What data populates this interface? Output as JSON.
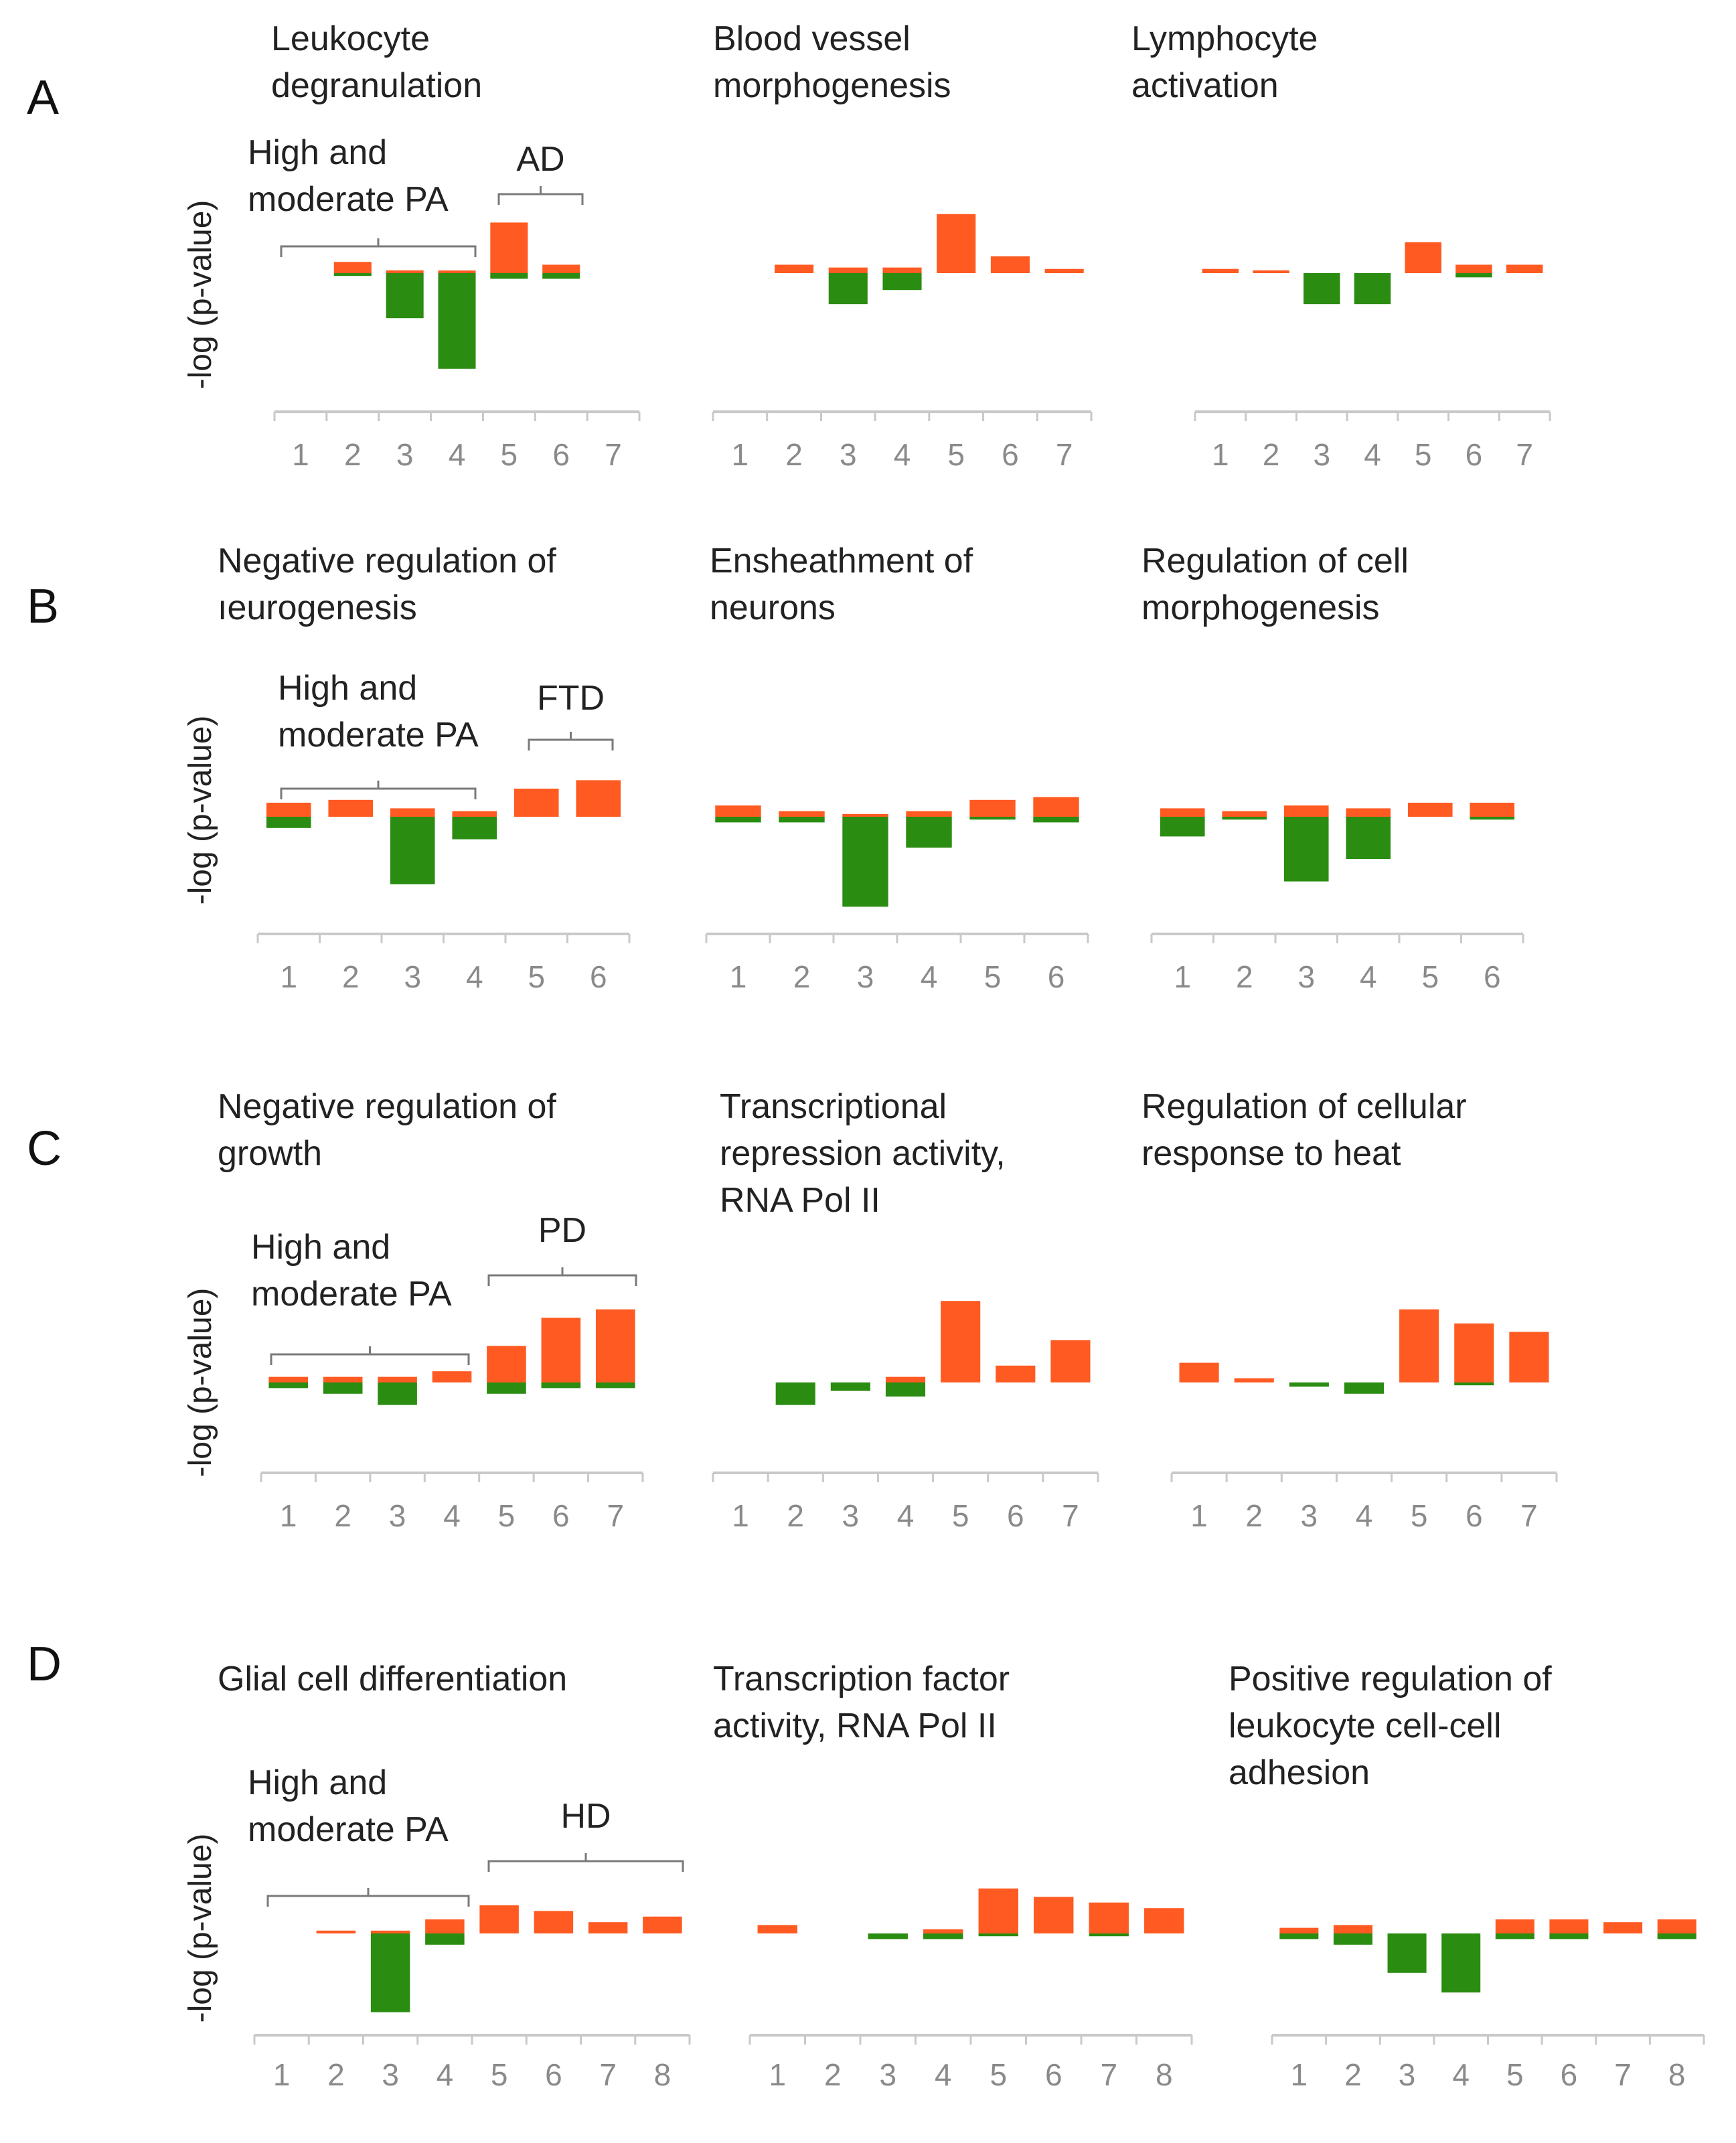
{
  "colors": {
    "up": "#ff5a22",
    "down": "#2a8c10",
    "axis": "#c9c9c9",
    "tick_text": "#8a8a8a"
  },
  "rows": [
    {
      "letter": "A",
      "ylabel": "-log (p-value)",
      "group1": "High and\nmoderate PA",
      "group2": "AD"
    },
    {
      "letter": "B",
      "ylabel": "-log (p-value)",
      "group1": "High and\nmoderate PA",
      "group2": "FTD"
    },
    {
      "letter": "C",
      "ylabel": "-log (p-value)",
      "group1": "High and\nmoderate PA",
      "group2": "PD"
    },
    {
      "letter": "D",
      "ylabel": "-log (p-value)",
      "group1": "High and\nmoderate PA",
      "group2": "HD"
    }
  ],
  "chart_data": [
    {
      "type": "bar",
      "title": "Leukocyte\ndegranulation",
      "ylabel": "-log (p-value)",
      "categories": [
        "1",
        "2",
        "3",
        "4",
        "5",
        "6",
        "7"
      ],
      "series": [
        {
          "color": "up",
          "values": [
            0,
            0.4,
            0.1,
            0.05,
            1.8,
            0.3,
            0
          ]
        },
        {
          "color": "down",
          "values": [
            0,
            -0.1,
            -1.6,
            -3.4,
            -0.2,
            -0.2,
            0
          ]
        }
      ]
    },
    {
      "type": "bar",
      "title": "Blood vessel\nmorphogenesis",
      "ylabel": "",
      "categories": [
        "1",
        "2",
        "3",
        "4",
        "5",
        "6",
        "7"
      ],
      "series": [
        {
          "color": "up",
          "values": [
            0,
            0.3,
            0.2,
            0.2,
            2.1,
            0.6,
            0.15
          ]
        },
        {
          "color": "down",
          "values": [
            0,
            0,
            -1.1,
            -0.6,
            0,
            0,
            0
          ]
        }
      ]
    },
    {
      "type": "bar",
      "title": "Lymphocyte\nactivation",
      "ylabel": "",
      "categories": [
        "1",
        "2",
        "3",
        "4",
        "5",
        "6",
        "7"
      ],
      "series": [
        {
          "color": "up",
          "values": [
            0.15,
            0.1,
            0,
            0,
            1.1,
            0.3,
            0.3
          ]
        },
        {
          "color": "down",
          "values": [
            0,
            0,
            -1.1,
            -1.1,
            0,
            -0.15,
            0
          ]
        }
      ]
    },
    {
      "type": "bar",
      "title": "Negative  regulation  of\nıeurogenesis",
      "ylabel": "-log (p-value)",
      "categories": [
        "1",
        "2",
        "3",
        "4",
        "5",
        "6"
      ],
      "series": [
        {
          "color": "up",
          "values": [
            0.5,
            0.6,
            0.3,
            0.2,
            1.0,
            1.3
          ]
        },
        {
          "color": "down",
          "values": [
            -0.4,
            0,
            -2.4,
            -0.8,
            0,
            0
          ]
        }
      ]
    },
    {
      "type": "bar",
      "title": "Ensheathment  of\nneurons",
      "ylabel": "",
      "categories": [
        "1",
        "2",
        "3",
        "4",
        "5",
        "6"
      ],
      "series": [
        {
          "color": "up",
          "values": [
            0.4,
            0.2,
            0.1,
            0.2,
            0.6,
            0.7
          ]
        },
        {
          "color": "down",
          "values": [
            -0.2,
            -0.2,
            -3.2,
            -1.1,
            -0.1,
            -0.2
          ]
        }
      ]
    },
    {
      "type": "bar",
      "title": "Regulation  of cell\nmorphogenesis",
      "ylabel": "",
      "categories": [
        "1",
        "2",
        "3",
        "4",
        "5",
        "6"
      ],
      "series": [
        {
          "color": "up",
          "values": [
            0.3,
            0.2,
            0.4,
            0.3,
            0.5,
            0.5
          ]
        },
        {
          "color": "down",
          "values": [
            -0.7,
            -0.1,
            -2.3,
            -1.5,
            0,
            -0.1
          ]
        }
      ]
    },
    {
      "type": "bar",
      "title": "Negative  regulation  of\ngrowth",
      "ylabel": "-log (p-value)",
      "categories": [
        "1",
        "2",
        "3",
        "4",
        "5",
        "6",
        "7"
      ],
      "series": [
        {
          "color": "up",
          "values": [
            0.2,
            0.2,
            0.2,
            0.4,
            1.3,
            2.3,
            2.6
          ]
        },
        {
          "color": "down",
          "values": [
            -0.2,
            -0.4,
            -0.8,
            0,
            -0.4,
            -0.2,
            -0.2
          ]
        }
      ]
    },
    {
      "type": "bar",
      "title": "Transcriptional\nrepression  activity,\nRNA Pol II",
      "ylabel": "",
      "categories": [
        "1",
        "2",
        "3",
        "4",
        "5",
        "6",
        "7"
      ],
      "series": [
        {
          "color": "up",
          "values": [
            0,
            0,
            0,
            0.2,
            2.9,
            0.6,
            1.5
          ]
        },
        {
          "color": "down",
          "values": [
            0,
            -0.8,
            -0.3,
            -0.5,
            0,
            0,
            0
          ]
        }
      ]
    },
    {
      "type": "bar",
      "title": "Regulation  of cellular\nresponse to heat",
      "ylabel": "",
      "categories": [
        "1",
        "2",
        "3",
        "4",
        "5",
        "6",
        "7"
      ],
      "series": [
        {
          "color": "up",
          "values": [
            0.7,
            0.15,
            0,
            0,
            2.6,
            2.1,
            1.8
          ]
        },
        {
          "color": "down",
          "values": [
            0,
            0,
            -0.15,
            -0.4,
            0,
            -0.1,
            0
          ]
        }
      ]
    },
    {
      "type": "bar",
      "title": "Glial cell differentiation",
      "ylabel": "-log (p-value)",
      "categories": [
        "1",
        "2",
        "3",
        "4",
        "5",
        "6",
        "7",
        "8"
      ],
      "series": [
        {
          "color": "up",
          "values": [
            0,
            0.1,
            0.1,
            0.5,
            1.0,
            0.8,
            0.4,
            0.6
          ]
        },
        {
          "color": "down",
          "values": [
            0,
            0,
            -2.8,
            -0.4,
            0,
            0,
            0,
            0
          ]
        }
      ]
    },
    {
      "type": "bar",
      "title": "Transcription  factor\nactivity, RNA Pol II",
      "ylabel": "",
      "categories": [
        "1",
        "2",
        "3",
        "4",
        "5",
        "6",
        "7",
        "8"
      ],
      "series": [
        {
          "color": "up",
          "values": [
            0.3,
            0,
            0,
            0.15,
            1.6,
            1.3,
            1.1,
            0.9
          ]
        },
        {
          "color": "down",
          "values": [
            0,
            0,
            -0.2,
            -0.2,
            -0.1,
            0,
            -0.1,
            0
          ]
        }
      ]
    },
    {
      "type": "bar",
      "title": "Positive regulation  of\nleukocyte cell-cell\nadhesion",
      "ylabel": "",
      "categories": [
        "1",
        "2",
        "3",
        "4",
        "5",
        "6",
        "7",
        "8"
      ],
      "series": [
        {
          "color": "up",
          "values": [
            0.2,
            0.3,
            0,
            0,
            0.5,
            0.5,
            0.4,
            0.5
          ]
        },
        {
          "color": "down",
          "values": [
            -0.2,
            -0.4,
            -1.4,
            -2.1,
            -0.2,
            -0.2,
            0,
            -0.2
          ]
        }
      ]
    }
  ]
}
